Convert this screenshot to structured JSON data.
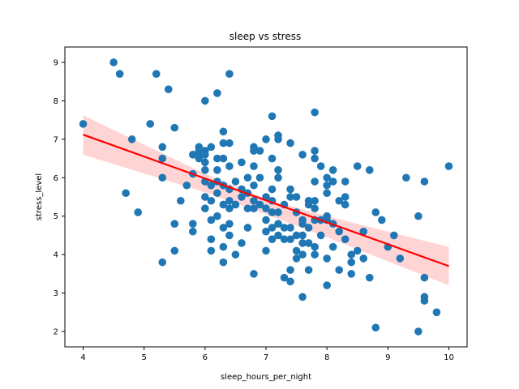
{
  "chart_data": {
    "type": "scatter",
    "title": "sleep vs stress",
    "xlabel": "sleep_hours_per_night",
    "ylabel": "stress_level",
    "xlim": [
      3.7,
      10.3
    ],
    "ylim": [
      1.6,
      9.4
    ],
    "xticks": [
      4,
      5,
      6,
      7,
      8,
      9,
      10
    ],
    "yticks": [
      2,
      3,
      4,
      5,
      6,
      7,
      8,
      9
    ],
    "grid": false,
    "colors": {
      "points": "#1f77b4",
      "regression_line": "#ff0000",
      "confidence_band": "#ffcccc"
    },
    "regression": {
      "x": [
        4,
        10
      ],
      "y": [
        7.12,
        3.7
      ]
    },
    "confidence_band": {
      "x": [
        4,
        6,
        7,
        8,
        10
      ],
      "upper": [
        7.62,
        6.1,
        5.45,
        5.0,
        4.2
      ],
      "lower": [
        6.6,
        5.62,
        5.05,
        4.45,
        3.2
      ]
    },
    "points": [
      [
        4.0,
        7.4
      ],
      [
        4.5,
        9.0
      ],
      [
        4.6,
        8.7
      ],
      [
        4.7,
        5.6
      ],
      [
        4.8,
        7.0
      ],
      [
        4.9,
        5.1
      ],
      [
        5.1,
        7.4
      ],
      [
        5.2,
        8.7
      ],
      [
        5.3,
        6.8
      ],
      [
        5.3,
        6.5
      ],
      [
        5.3,
        6.0
      ],
      [
        5.3,
        3.8
      ],
      [
        5.4,
        8.3
      ],
      [
        5.5,
        7.3
      ],
      [
        5.5,
        4.8
      ],
      [
        5.5,
        4.1
      ],
      [
        5.6,
        5.4
      ],
      [
        5.7,
        5.8
      ],
      [
        5.8,
        6.6
      ],
      [
        5.8,
        6.1
      ],
      [
        5.8,
        4.8
      ],
      [
        5.8,
        4.6
      ],
      [
        5.9,
        6.8
      ],
      [
        5.9,
        6.7
      ],
      [
        5.9,
        6.6
      ],
      [
        5.9,
        6.5
      ],
      [
        6.0,
        8.0
      ],
      [
        6.0,
        6.7
      ],
      [
        6.0,
        6.6
      ],
      [
        6.0,
        6.4
      ],
      [
        6.0,
        6.2
      ],
      [
        6.0,
        5.9
      ],
      [
        6.0,
        5.5
      ],
      [
        6.0,
        5.2
      ],
      [
        6.1,
        6.8
      ],
      [
        6.1,
        5.8
      ],
      [
        6.1,
        5.4
      ],
      [
        6.1,
        4.9
      ],
      [
        6.1,
        4.4
      ],
      [
        6.1,
        4.1
      ],
      [
        6.2,
        8.2
      ],
      [
        6.2,
        6.5
      ],
      [
        6.2,
        6.2
      ],
      [
        6.2,
        5.9
      ],
      [
        6.2,
        5.6
      ],
      [
        6.2,
        5.0
      ],
      [
        6.3,
        7.2
      ],
      [
        6.3,
        6.9
      ],
      [
        6.3,
        6.5
      ],
      [
        6.3,
        5.8
      ],
      [
        6.3,
        5.3
      ],
      [
        6.3,
        4.7
      ],
      [
        6.3,
        4.2
      ],
      [
        6.3,
        3.8
      ],
      [
        6.4,
        8.7
      ],
      [
        6.4,
        6.9
      ],
      [
        6.4,
        6.3
      ],
      [
        6.4,
        5.7
      ],
      [
        6.4,
        5.4
      ],
      [
        6.4,
        5.2
      ],
      [
        6.4,
        4.8
      ],
      [
        6.4,
        4.5
      ],
      [
        6.5,
        5.9
      ],
      [
        6.5,
        5.3
      ],
      [
        6.5,
        4.0
      ],
      [
        6.6,
        6.4
      ],
      [
        6.6,
        5.7
      ],
      [
        6.6,
        5.5
      ],
      [
        6.6,
        4.3
      ],
      [
        6.7,
        6.0
      ],
      [
        6.7,
        5.6
      ],
      [
        6.7,
        5.2
      ],
      [
        6.7,
        4.7
      ],
      [
        6.8,
        6.8
      ],
      [
        6.8,
        6.7
      ],
      [
        6.8,
        6.3
      ],
      [
        6.8,
        5.8
      ],
      [
        6.8,
        5.4
      ],
      [
        6.8,
        5.2
      ],
      [
        6.8,
        3.5
      ],
      [
        6.9,
        6.7
      ],
      [
        6.9,
        6.0
      ],
      [
        6.9,
        5.3
      ],
      [
        7.0,
        7.0
      ],
      [
        7.0,
        5.5
      ],
      [
        7.0,
        5.2
      ],
      [
        7.0,
        4.9
      ],
      [
        7.0,
        4.6
      ],
      [
        7.0,
        4.1
      ],
      [
        7.1,
        7.6
      ],
      [
        7.1,
        6.5
      ],
      [
        7.1,
        5.7
      ],
      [
        7.1,
        5.4
      ],
      [
        7.1,
        5.1
      ],
      [
        7.1,
        4.7
      ],
      [
        7.1,
        4.4
      ],
      [
        7.2,
        7.1
      ],
      [
        7.2,
        7.0
      ],
      [
        7.2,
        6.2
      ],
      [
        7.2,
        6.0
      ],
      [
        7.2,
        5.1
      ],
      [
        7.2,
        4.8
      ],
      [
        7.2,
        4.5
      ],
      [
        7.3,
        4.7
      ],
      [
        7.3,
        4.4
      ],
      [
        7.3,
        3.4
      ],
      [
        7.3,
        5.3
      ],
      [
        7.4,
        6.9
      ],
      [
        7.4,
        5.7
      ],
      [
        7.4,
        5.5
      ],
      [
        7.4,
        4.7
      ],
      [
        7.4,
        4.4
      ],
      [
        7.4,
        3.6
      ],
      [
        7.4,
        3.3
      ],
      [
        7.5,
        5.5
      ],
      [
        7.5,
        5.1
      ],
      [
        7.5,
        4.5
      ],
      [
        7.5,
        4.1
      ],
      [
        7.5,
        3.9
      ],
      [
        7.6,
        6.6
      ],
      [
        7.6,
        4.9
      ],
      [
        7.6,
        4.8
      ],
      [
        7.6,
        4.5
      ],
      [
        7.6,
        4.3
      ],
      [
        7.6,
        4.0
      ],
      [
        7.6,
        2.9
      ],
      [
        7.7,
        5.4
      ],
      [
        7.7,
        5.3
      ],
      [
        7.7,
        4.7
      ],
      [
        7.7,
        4.3
      ],
      [
        7.7,
        3.6
      ],
      [
        7.8,
        7.7
      ],
      [
        7.8,
        6.7
      ],
      [
        7.8,
        6.5
      ],
      [
        7.8,
        5.9
      ],
      [
        7.8,
        5.4
      ],
      [
        7.8,
        5.2
      ],
      [
        7.8,
        4.9
      ],
      [
        7.8,
        4.2
      ],
      [
        7.8,
        4.0
      ],
      [
        7.9,
        6.3
      ],
      [
        7.9,
        4.9
      ],
      [
        7.9,
        4.5
      ],
      [
        8.0,
        6.0
      ],
      [
        8.0,
        5.8
      ],
      [
        8.0,
        5.6
      ],
      [
        8.0,
        5.0
      ],
      [
        8.0,
        4.9
      ],
      [
        8.0,
        3.9
      ],
      [
        8.0,
        3.2
      ],
      [
        8.1,
        6.2
      ],
      [
        8.1,
        5.9
      ],
      [
        8.1,
        4.8
      ],
      [
        8.1,
        4.2
      ],
      [
        8.2,
        5.4
      ],
      [
        8.2,
        4.6
      ],
      [
        8.2,
        3.6
      ],
      [
        8.3,
        5.9
      ],
      [
        8.3,
        5.5
      ],
      [
        8.3,
        5.3
      ],
      [
        8.3,
        4.4
      ],
      [
        8.4,
        4.0
      ],
      [
        8.4,
        3.8
      ],
      [
        8.4,
        3.5
      ],
      [
        8.5,
        6.3
      ],
      [
        8.5,
        4.1
      ],
      [
        8.6,
        4.6
      ],
      [
        8.6,
        3.9
      ],
      [
        8.7,
        6.2
      ],
      [
        8.7,
        3.4
      ],
      [
        8.8,
        5.1
      ],
      [
        8.8,
        2.1
      ],
      [
        8.9,
        4.9
      ],
      [
        9.0,
        4.2
      ],
      [
        9.1,
        4.5
      ],
      [
        9.2,
        3.9
      ],
      [
        9.3,
        6.0
      ],
      [
        9.5,
        5.0
      ],
      [
        9.5,
        2.0
      ],
      [
        9.6,
        5.9
      ],
      [
        9.6,
        3.4
      ],
      [
        9.6,
        2.9
      ],
      [
        9.6,
        2.8
      ],
      [
        9.8,
        2.5
      ],
      [
        10.0,
        6.3
      ]
    ]
  }
}
